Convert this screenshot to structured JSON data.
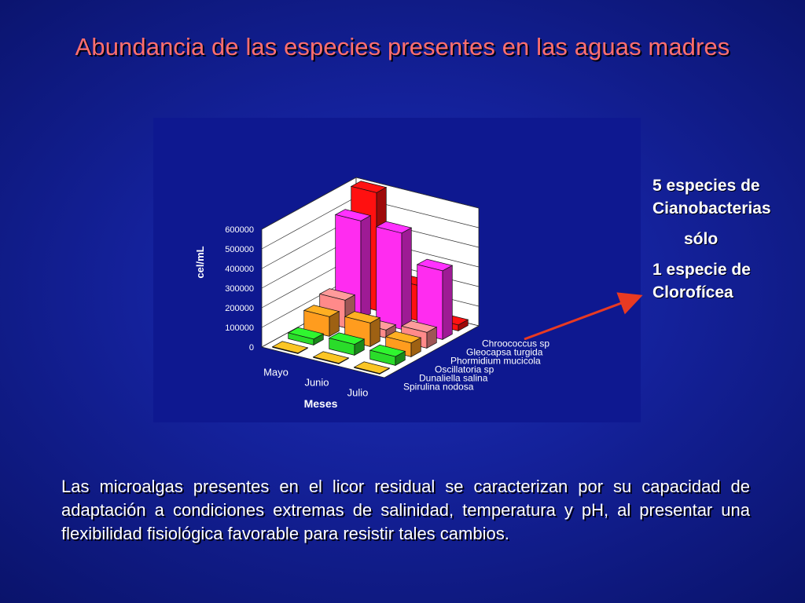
{
  "slide": {
    "title": "Abundancia de las especies presentes en las aguas madres",
    "side_note": [
      "5 especies de",
      "Cianobacterias",
      "sólo",
      "1 especie de",
      "Clorofícea"
    ],
    "caption": "Las microalgas presentes en el licor residual se caracterizan por su capacidad de adaptación a condiciones extremas de salinidad, temperatura y pH, al presentar una flexibilidad fisiológica favorable para resistir tales cambios."
  },
  "colors": {
    "arrow": "#e83a22"
  },
  "chart_data": {
    "type": "bar",
    "subtype": "3d-column",
    "xlabel": "Meses",
    "ylabel": "cel/mL",
    "ylim": [
      0,
      600000
    ],
    "yticks": [
      "0",
      "100000",
      "200000",
      "300000",
      "400000",
      "500000",
      "600000"
    ],
    "grid": true,
    "categories": [
      "Mayo",
      "Junio",
      "Julio"
    ],
    "series": [
      {
        "name": "Spirulina nodosa",
        "color": "#e0b020",
        "values": [
          3000,
          3000,
          3000
        ]
      },
      {
        "name": "Dunaliella salina",
        "color": "#2adc2a",
        "values": [
          30000,
          55000,
          45000
        ]
      },
      {
        "name": "Oscillatoria sp",
        "color": "#ff9c1e",
        "values": [
          100000,
          120000,
          70000
        ]
      },
      {
        "name": "Phormidium mucicola",
        "color": "#ff8a8a",
        "values": [
          140000,
          40000,
          80000
        ]
      },
      {
        "name": "Gleocapsa turgida",
        "color": "#ff2cf0",
        "values": [
          500000,
          490000,
          350000
        ]
      },
      {
        "name": "Chroococcus sp",
        "color": "#ff1010",
        "values": [
          600000,
          180000,
          30000
        ]
      }
    ]
  }
}
